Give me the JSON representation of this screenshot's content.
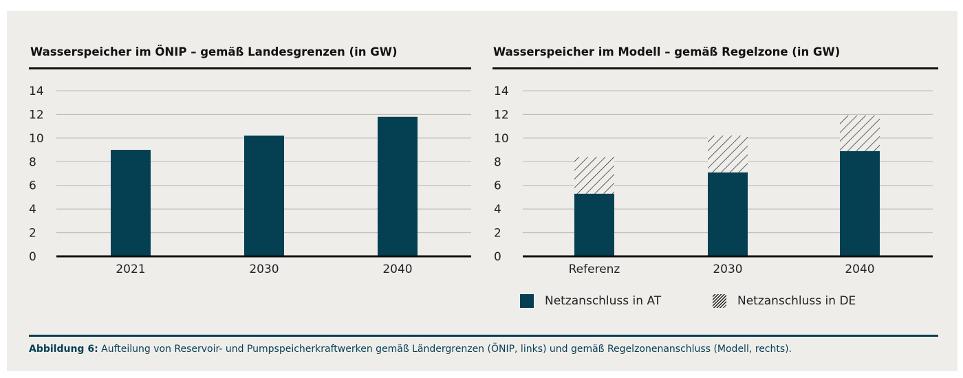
{
  "chart_data": [
    {
      "type": "bar",
      "title": "Wasserspeicher im ÖNIP  – gemäß Landesgrenzen (in GW)",
      "categories": [
        "2021",
        "2030",
        "2040"
      ],
      "values": [
        9.0,
        10.2,
        11.8
      ],
      "yticks": [
        "0",
        "2",
        "4",
        "6",
        "8",
        "10",
        "12",
        "14"
      ],
      "ylim": [
        0,
        14
      ],
      "grid": true,
      "color": "#043f52"
    },
    {
      "type": "bar",
      "stacked": true,
      "title": "Wasserspeicher im Modell – gemäß Regelzone (in GW)",
      "categories": [
        "Referenz",
        "2030",
        "2040"
      ],
      "series": [
        {
          "name": "Netzanschluss in AT",
          "values": [
            5.3,
            7.1,
            8.9
          ],
          "color": "#043f52",
          "pattern": "solid"
        },
        {
          "name": "Netzanschluss in DE",
          "values": [
            3.1,
            3.1,
            3.0
          ],
          "color": "#222222",
          "pattern": "hatched"
        }
      ],
      "yticks": [
        "0",
        "2",
        "4",
        "6",
        "8",
        "10",
        "12",
        "14"
      ],
      "ylim": [
        0,
        14
      ],
      "grid": true,
      "legend_position": "bottom"
    }
  ],
  "caption": {
    "label": "Abbildung 6:",
    "text": " Aufteilung von Reservoir- und Pumpspeicherkraftwerken gemäß Ländergrenzen (ÖNIP, links) und gemäß Regelzonenanschluss (Modell, rechts)."
  }
}
